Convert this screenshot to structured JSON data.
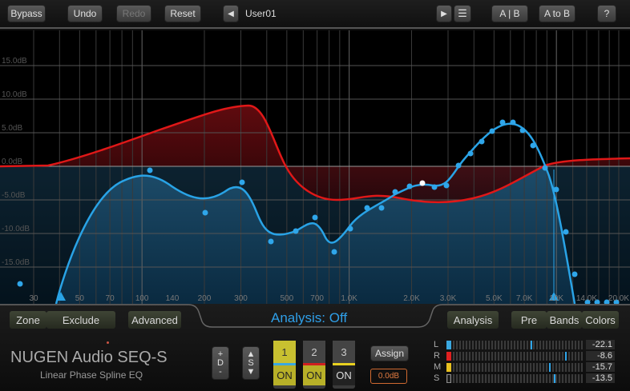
{
  "toolbar": {
    "bypass": "Bypass",
    "undo": "Undo",
    "redo": "Redo",
    "reset": "Reset",
    "preset": "User01",
    "ab": "A | B",
    "atob": "A to B",
    "help": "?"
  },
  "graph": {
    "y_labels": [
      "15.0dB",
      "10.0dB",
      "5.0dB",
      "0.0dB",
      "-5.0dB",
      "-10.0dB",
      "-15.0dB"
    ],
    "x_labels": [
      "30",
      "50",
      "70",
      "100",
      "140",
      "200",
      "300",
      "500",
      "700",
      "1.0K",
      "2.0K",
      "3.0K",
      "5.0K",
      "7.0K",
      "10K",
      "14.0K",
      "20.0K"
    ],
    "colors": {
      "mid_curve": "#29a3e6",
      "side_curve": "#e01818"
    }
  },
  "bottom": {
    "zone": "Zone",
    "exclude": "Exclude",
    "advanced": "Advanced",
    "analysis_status": "Analysis: Off",
    "analysis": "Analysis",
    "pre": "Pre",
    "bands": "Bands",
    "colors": "Colors",
    "title": "NUGEN Audio SEQ-S",
    "subtitle": "Linear Phase Spline EQ",
    "d_plus": "+",
    "d_label": "D",
    "d_minus": "-",
    "s_label": "S",
    "bands_list": [
      {
        "num": "1",
        "on": "ON",
        "color": "#3aa8e0"
      },
      {
        "num": "2",
        "on": "ON",
        "color": "#d02020"
      },
      {
        "num": "3",
        "on": "ON",
        "color": "#e8d020"
      }
    ],
    "assign": "Assign",
    "assign_value": "0.0dB",
    "meters": [
      {
        "label": "L",
        "value": "-22.1",
        "level": 0.62,
        "color": "#3aa8e0"
      },
      {
        "label": "R",
        "value": "-8.6",
        "level": 0.87,
        "color": "#e02020"
      },
      {
        "label": "M",
        "value": "-15.7",
        "level": 0.75,
        "color": "#e8c020"
      },
      {
        "label": "S",
        "value": "-13.5",
        "level": 0.79,
        "color": "#888"
      }
    ]
  }
}
